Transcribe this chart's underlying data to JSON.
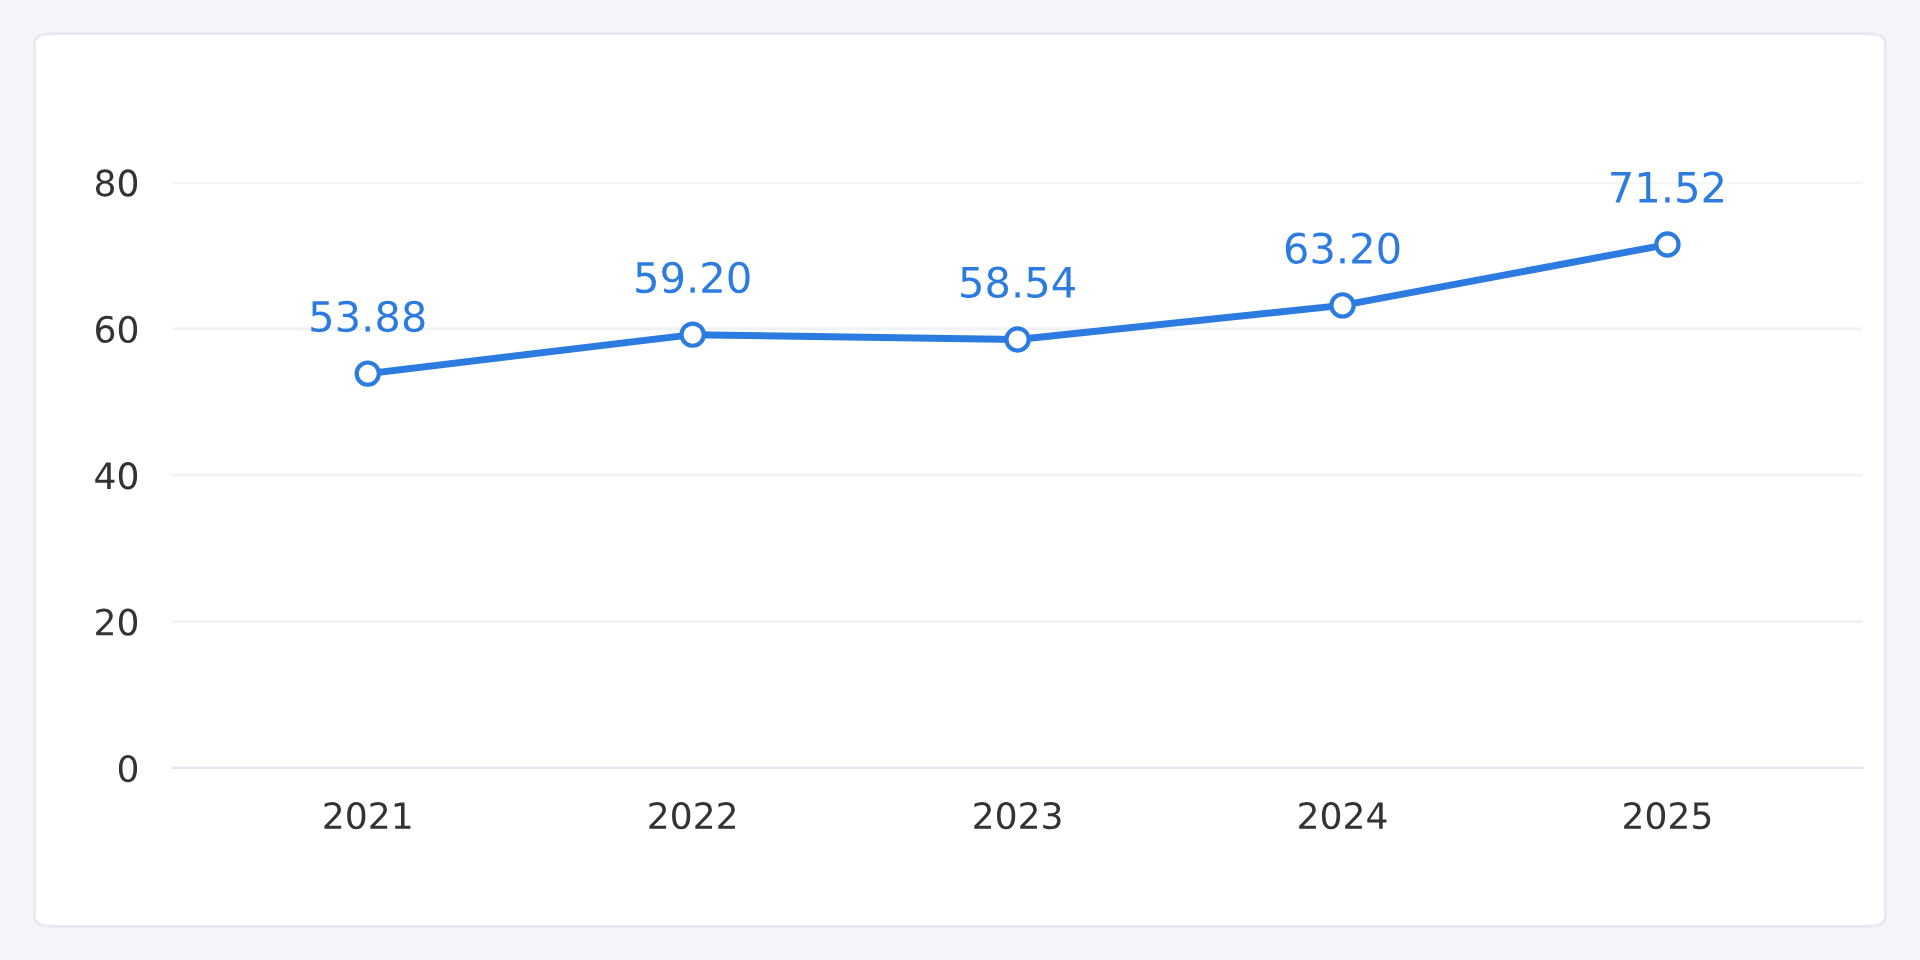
{
  "chart_data": {
    "type": "line",
    "categories": [
      "2021",
      "2022",
      "2023",
      "2024",
      "2025"
    ],
    "series": [
      {
        "color": "#2b7be0",
        "values": [
          53.88,
          59.2,
          58.54,
          63.2,
          71.52
        ],
        "value_labels": [
          "53.88",
          "59.20",
          "58.54",
          "63.20",
          "71.52"
        ]
      }
    ],
    "ylim": [
      0,
      80
    ],
    "yticks": [
      0,
      20,
      40,
      60,
      80
    ],
    "grid": "y",
    "marker": "circle",
    "line_style": "solid",
    "legend": false
  }
}
